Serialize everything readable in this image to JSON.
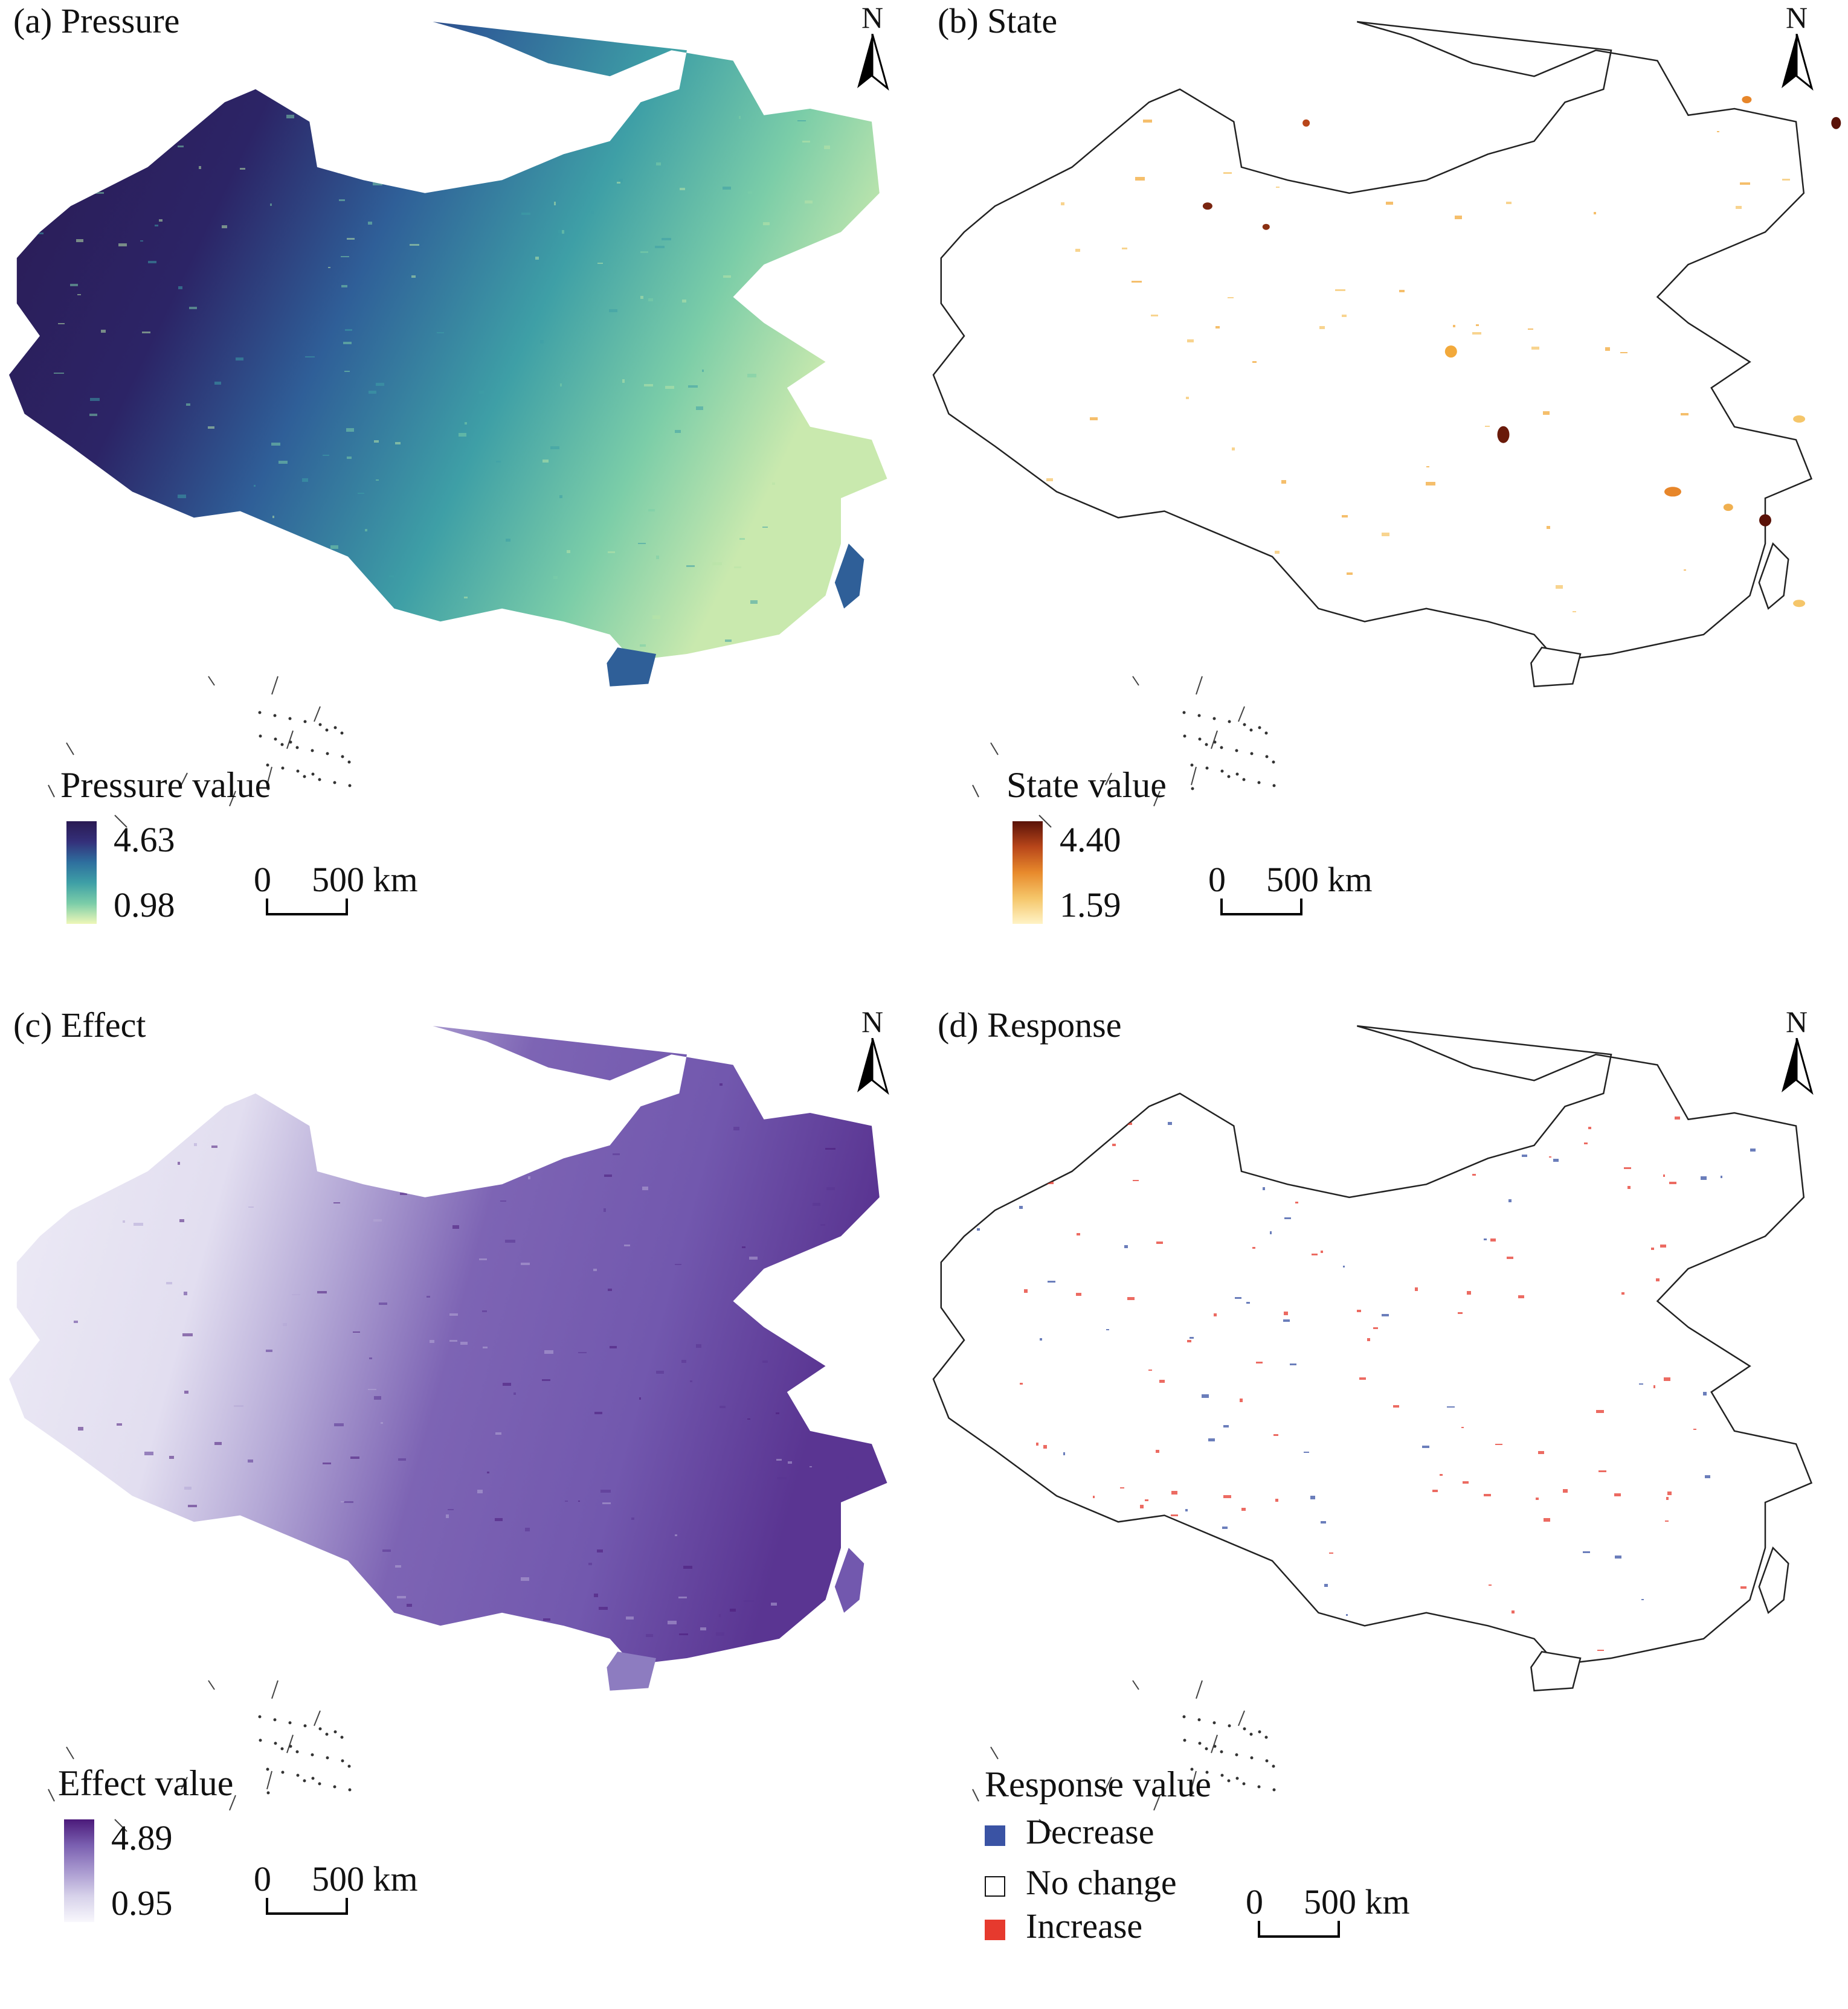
{
  "panels": [
    {
      "id": "a",
      "title": "(a) Pressure",
      "legend_title": "Pressure value",
      "legend_max": "4.63",
      "legend_min": "0.98",
      "colors": [
        "#2a1a52",
        "#34307a",
        "#2e6f9e",
        "#3e9fa6",
        "#7bcda8",
        "#e9f4b4"
      ]
    },
    {
      "id": "b",
      "title": "(b) State",
      "legend_title": "State value",
      "legend_max": "4.40",
      "legend_min": "1.59",
      "colors": [
        "#5a1208",
        "#b8461a",
        "#e88a2c",
        "#f5c66a",
        "#fff3c6"
      ]
    },
    {
      "id": "c",
      "title": "(c) Effect",
      "legend_title": "Effect value",
      "legend_max": "4.89",
      "legend_min": "0.95",
      "colors": [
        "#4b1a7a",
        "#7a5fb0",
        "#a898cf",
        "#d7d2ea",
        "#f6f5fb"
      ]
    },
    {
      "id": "d",
      "title": "(d) Response",
      "legend_title": "Response value",
      "categories": [
        {
          "label": "Decrease",
          "color": "#3a53a4"
        },
        {
          "label": "No change",
          "color": "#ffffff"
        },
        {
          "label": "Increase",
          "color": "#e63a2e"
        }
      ]
    }
  ],
  "north_label": "N",
  "scale": {
    "zero": "0",
    "distance": "500 km"
  }
}
